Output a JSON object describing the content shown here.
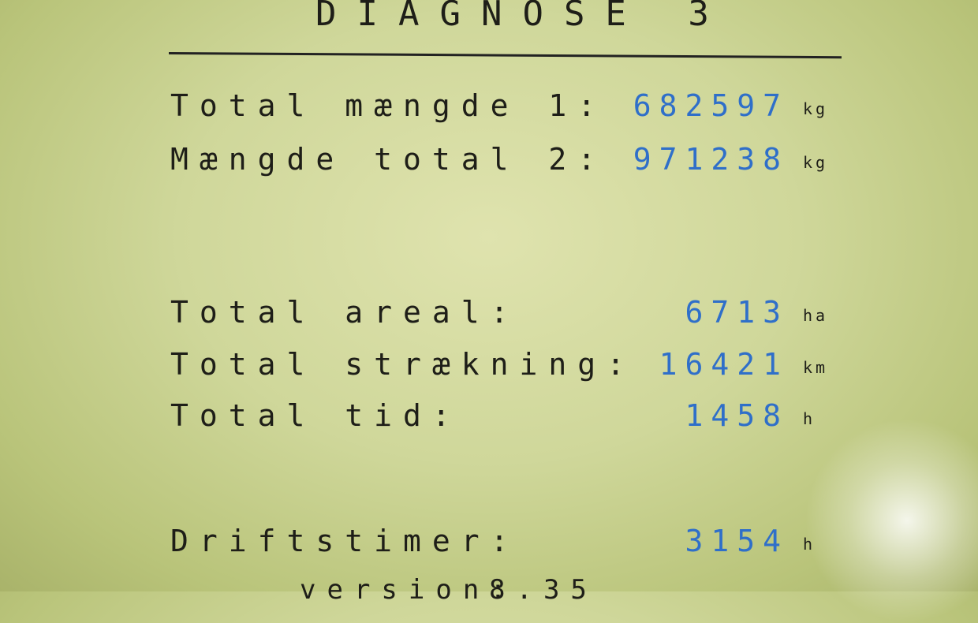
{
  "screen": {
    "title": "DIAGNOSE 3",
    "rows": [
      {
        "label": "Total mængde 1:",
        "value": "682597",
        "unit": "kg"
      },
      {
        "label": "Mængde total 2:",
        "value": "971238",
        "unit": "kg"
      },
      {
        "label": "Total areal:",
        "value": "6713",
        "unit": "ha"
      },
      {
        "label": "Total strækning:",
        "value": "16421",
        "unit": "km"
      },
      {
        "label": "Total tid:",
        "value": "1458",
        "unit": "h"
      },
      {
        "label": "Driftstimer:",
        "value": "3154",
        "unit": "h"
      }
    ],
    "footer": {
      "label": "version:",
      "value": "8.35"
    },
    "colors": {
      "value": "#2f6fc9",
      "text": "#1e1e18",
      "background": "#cfd79a"
    }
  }
}
